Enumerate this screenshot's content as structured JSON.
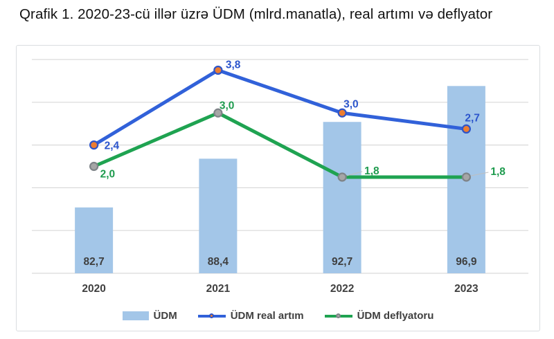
{
  "page": {
    "title": "Qrafik 1. 2020-23-cü illər üzrə ÜDM (mlrd.manatla), real artımı və deflyator"
  },
  "chart_data": {
    "type": "bar",
    "title": "Qrafik 1. 2020-23-cü illər üzrə ÜDM (mlrd.manatla), real artımı və deflyator",
    "categories": [
      "2020",
      "2021",
      "2022",
      "2023"
    ],
    "series": [
      {
        "name": "ÜDM",
        "type": "bar",
        "axis": "primary",
        "values": [
          82.7,
          88.4,
          92.7,
          96.9
        ],
        "labels": [
          "82,7",
          "88,4",
          "92,7",
          "96,9"
        ],
        "color": "#A3C6E8",
        "label_color": "#3F3F3F"
      },
      {
        "name": "ÜDM real artım",
        "type": "line",
        "axis": "secondary",
        "values": [
          2.4,
          3.8,
          3.0,
          2.7
        ],
        "labels": [
          "2,4",
          "3,8",
          "3,0",
          "2,7"
        ],
        "color": "#3161D9",
        "marker_fill": "#ED7D31",
        "marker_ring": "#2F55C8",
        "label_color": "#2C55CC",
        "label_offsets": [
          {
            "dx": 15,
            "dy": 6
          },
          {
            "dx": 11,
            "dy": -3
          },
          {
            "dx": 2,
            "dy": -8
          },
          {
            "dx": -2,
            "dy": -11
          }
        ]
      },
      {
        "name": "ÜDM deflyatoru",
        "type": "line",
        "axis": "secondary",
        "values": [
          2.0,
          3.0,
          1.8,
          1.8
        ],
        "labels": [
          "2,0",
          "3,0",
          "1,8",
          "1,8"
        ],
        "color": "#1FA351",
        "marker_fill": "#A6A6A6",
        "marker_ring": "#7F8488",
        "label_color": "#1E9B4E",
        "label_offsets": [
          {
            "dx": 9,
            "dy": 16
          },
          {
            "dx": 2,
            "dy": -6
          },
          {
            "dx": 32,
            "dy": -4,
            "leader": true
          },
          {
            "dx": 35,
            "dy": -3,
            "leader": true
          }
        ]
      }
    ],
    "primary_axis": {
      "min": 75,
      "max": 100,
      "tick_labels_visible": false
    },
    "secondary_axis": {
      "min": 0,
      "max": 4,
      "tick_labels_visible": false
    },
    "gridline_count": 6,
    "grid_color": "#D9D9D9",
    "leader_line_color": "#BFBFBF",
    "axis_label_color": "#404040",
    "legend_position": "bottom"
  }
}
